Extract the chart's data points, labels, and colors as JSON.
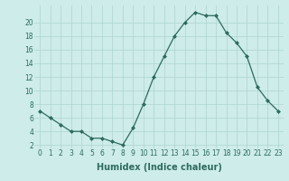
{
  "x": [
    0,
    1,
    2,
    3,
    4,
    5,
    6,
    7,
    8,
    9,
    10,
    11,
    12,
    13,
    14,
    15,
    16,
    17,
    18,
    19,
    20,
    21,
    22,
    23
  ],
  "y": [
    7,
    6,
    5,
    4,
    4,
    3,
    3,
    2.5,
    2,
    4.5,
    8,
    12,
    15,
    18,
    20,
    21.5,
    21,
    21,
    18.5,
    17,
    15,
    10.5,
    8.5,
    7
  ],
  "line_color": "#2e6b5e",
  "marker": "D",
  "marker_size": 2,
  "bg_color": "#cdecea",
  "grid_color": "#aed4d0",
  "xlabel": "Humidex (Indice chaleur)",
  "xlabel_fontsize": 7,
  "ytick_labels": [
    "2",
    "4",
    "6",
    "8",
    "10",
    "12",
    "14",
    "16",
    "18",
    "20"
  ],
  "ytick_values": [
    2,
    4,
    6,
    8,
    10,
    12,
    14,
    16,
    18,
    20
  ],
  "ylim": [
    1.5,
    22.5
  ],
  "xlim": [
    -0.5,
    23.5
  ],
  "xtick_values": [
    0,
    1,
    2,
    3,
    4,
    5,
    6,
    7,
    8,
    9,
    10,
    11,
    12,
    13,
    14,
    15,
    16,
    17,
    18,
    19,
    20,
    21,
    22,
    23
  ],
  "xtick_labels": [
    "0",
    "1",
    "2",
    "3",
    "4",
    "5",
    "6",
    "7",
    "8",
    "9",
    "10",
    "11",
    "12",
    "13",
    "14",
    "15",
    "16",
    "17",
    "18",
    "19",
    "20",
    "21",
    "22",
    "23"
  ],
  "tick_fontsize": 5.5
}
